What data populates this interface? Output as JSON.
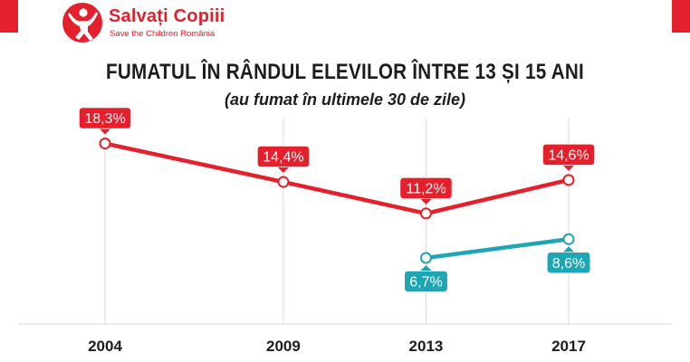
{
  "colors": {
    "brand_red": "#e4202c",
    "series_red": "#e4202c",
    "series_teal": "#1fa6b5",
    "grid": "#d9d9d9",
    "text_dark": "#1d1d1b"
  },
  "logo": {
    "name": "Salvați Copiii",
    "subtitle": "Save the Children România",
    "icon": "child-figure-logo"
  },
  "chart_data": {
    "type": "line",
    "title": "FUMATUL ÎN RÂNDUL ELEVILOR ÎNTRE 13 ȘI 15 ANI",
    "subtitle": "(au fumat în ultimele 30 de zile)",
    "x": [
      2004,
      2009,
      2013,
      2017
    ],
    "x_tick_labels": [
      "2004",
      "2009",
      "2013",
      "2017"
    ],
    "ylim": [
      0,
      20
    ],
    "grid": "vertical",
    "legend": "none",
    "series": [
      {
        "name": "series-red",
        "color": "#e4202c",
        "x": [
          2004,
          2009,
          2013,
          2017
        ],
        "values": [
          18.3,
          14.4,
          11.2,
          14.6
        ],
        "labels": [
          "18,3%",
          "14,4%",
          "11,2%",
          "14,6%"
        ],
        "label_position": "above"
      },
      {
        "name": "series-teal",
        "color": "#1fa6b5",
        "x": [
          2013,
          2017
        ],
        "values": [
          6.7,
          8.6
        ],
        "labels": [
          "6,7%",
          "8,6%"
        ],
        "label_position": "below"
      }
    ]
  }
}
